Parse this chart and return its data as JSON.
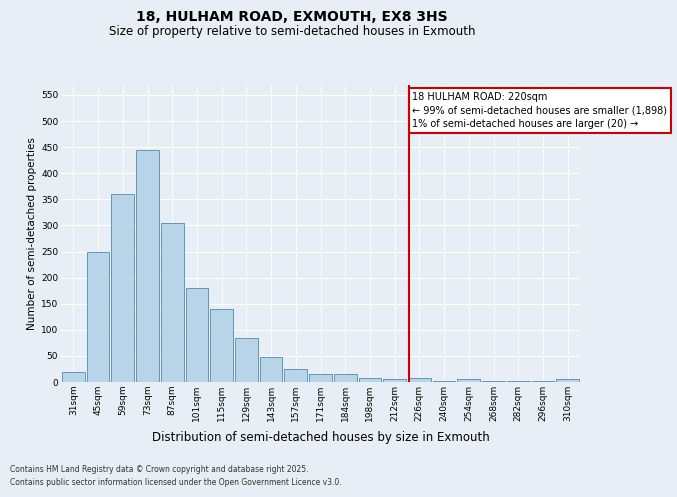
{
  "title": "18, HULHAM ROAD, EXMOUTH, EX8 3HS",
  "subtitle": "Size of property relative to semi-detached houses in Exmouth",
  "xlabel": "Distribution of semi-detached houses by size in Exmouth",
  "ylabel": "Number of semi-detached properties",
  "bin_labels": [
    "31sqm",
    "45sqm",
    "59sqm",
    "73sqm",
    "87sqm",
    "101sqm",
    "115sqm",
    "129sqm",
    "143sqm",
    "157sqm",
    "171sqm",
    "184sqm",
    "198sqm",
    "212sqm",
    "226sqm",
    "240sqm",
    "254sqm",
    "268sqm",
    "282sqm",
    "296sqm",
    "310sqm"
  ],
  "bar_heights": [
    20,
    250,
    360,
    445,
    305,
    180,
    140,
    85,
    47,
    25,
    15,
    15,
    8,
    5,
    8,
    2,
    5,
    2,
    2,
    2,
    5
  ],
  "bar_color": "#b8d4e8",
  "bar_edge_color": "#5588aa",
  "vline_index": 13.57,
  "vline_color": "#cc0000",
  "annotation_text": "18 HULHAM ROAD: 220sqm\n← 99% of semi-detached houses are smaller (1,898)\n1% of semi-detached houses are larger (20) →",
  "ylim": [
    0,
    570
  ],
  "yticks": [
    0,
    50,
    100,
    150,
    200,
    250,
    300,
    350,
    400,
    450,
    500,
    550
  ],
  "footer_line1": "Contains HM Land Registry data © Crown copyright and database right 2025.",
  "footer_line2": "Contains public sector information licensed under the Open Government Licence v3.0.",
  "bg_color": "#e8eef5",
  "title_fontsize": 10,
  "subtitle_fontsize": 8.5,
  "tick_fontsize": 6.5,
  "xlabel_fontsize": 8.5,
  "ylabel_fontsize": 7.5,
  "annot_fontsize": 7
}
